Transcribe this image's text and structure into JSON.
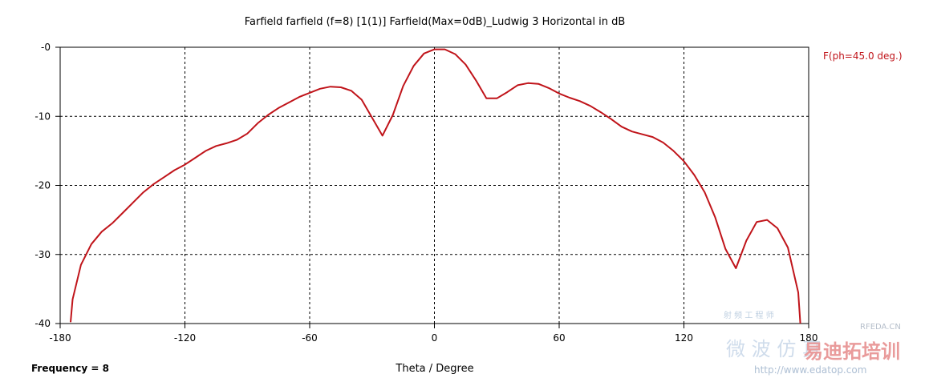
{
  "chart_data": {
    "type": "line",
    "title": "Farfield farfield (f=8) [1(1)] Farfield(Max=0dB)_Ludwig 3 Horizontal in dB",
    "xlabel": "Theta / Degree",
    "ylabel": "",
    "xlim": [
      -180,
      180
    ],
    "ylim": [
      -40,
      0
    ],
    "xticks": [
      -180,
      -120,
      -60,
      0,
      60,
      120,
      180
    ],
    "xtick_labels": [
      "-180",
      "-120",
      "-60",
      "0",
      "60",
      "120",
      "180"
    ],
    "yticks": [
      0,
      -10,
      -20,
      -30,
      -40
    ],
    "ytick_labels": [
      "-0",
      "-10",
      "-20",
      "-30",
      "-40"
    ],
    "grid": true,
    "legend_position": "right",
    "series": [
      {
        "name": "F(ph=45.0 deg.)",
        "color": "#c0141a",
        "x": [
          -175,
          -174,
          -170,
          -165,
          -160,
          -155,
          -150,
          -145,
          -140,
          -135,
          -130,
          -125,
          -120,
          -115,
          -110,
          -105,
          -100,
          -95,
          -90,
          -85,
          -80,
          -75,
          -70,
          -65,
          -60,
          -55,
          -50,
          -45,
          -40,
          -35,
          -30,
          -25,
          -20,
          -15,
          -10,
          -5,
          0,
          5,
          10,
          15,
          20,
          25,
          30,
          35,
          40,
          45,
          50,
          55,
          60,
          65,
          70,
          75,
          80,
          85,
          90,
          95,
          100,
          105,
          110,
          115,
          120,
          125,
          130,
          135,
          140,
          145,
          150,
          155,
          160,
          165,
          170,
          175,
          176
        ],
        "values": [
          -39.8,
          -36.5,
          -31.5,
          -28.5,
          -26.7,
          -25.5,
          -24.0,
          -22.5,
          -21.0,
          -19.8,
          -18.8,
          -17.8,
          -17.0,
          -16.0,
          -15.0,
          -14.3,
          -13.9,
          -13.4,
          -12.5,
          -11.0,
          -9.8,
          -8.8,
          -8.0,
          -7.2,
          -6.6,
          -6.0,
          -5.7,
          -5.8,
          -6.3,
          -7.6,
          -10.2,
          -12.8,
          -9.8,
          -5.6,
          -2.7,
          -0.9,
          -0.3,
          -0.3,
          -1.0,
          -2.5,
          -4.8,
          -7.4,
          -7.4,
          -6.5,
          -5.5,
          -5.2,
          -5.3,
          -5.9,
          -6.7,
          -7.3,
          -7.8,
          -8.5,
          -9.4,
          -10.4,
          -11.5,
          -12.2,
          -12.6,
          -13.0,
          -13.8,
          -15.0,
          -16.5,
          -18.5,
          -21.0,
          -24.6,
          -29.2,
          -32.0,
          -28.0,
          -25.3,
          -25.0,
          -26.2,
          -29.0,
          -35.5,
          -40.0
        ]
      }
    ]
  },
  "footer": {
    "frequency_label": "Frequency = 8"
  },
  "watermark": {
    "text1": "RFEDA.CN",
    "text2": "微 波 仿 真",
    "text3": "易迪拓培训",
    "url": "http://www.edatop.com",
    "small": "射 频 工 程 师"
  }
}
